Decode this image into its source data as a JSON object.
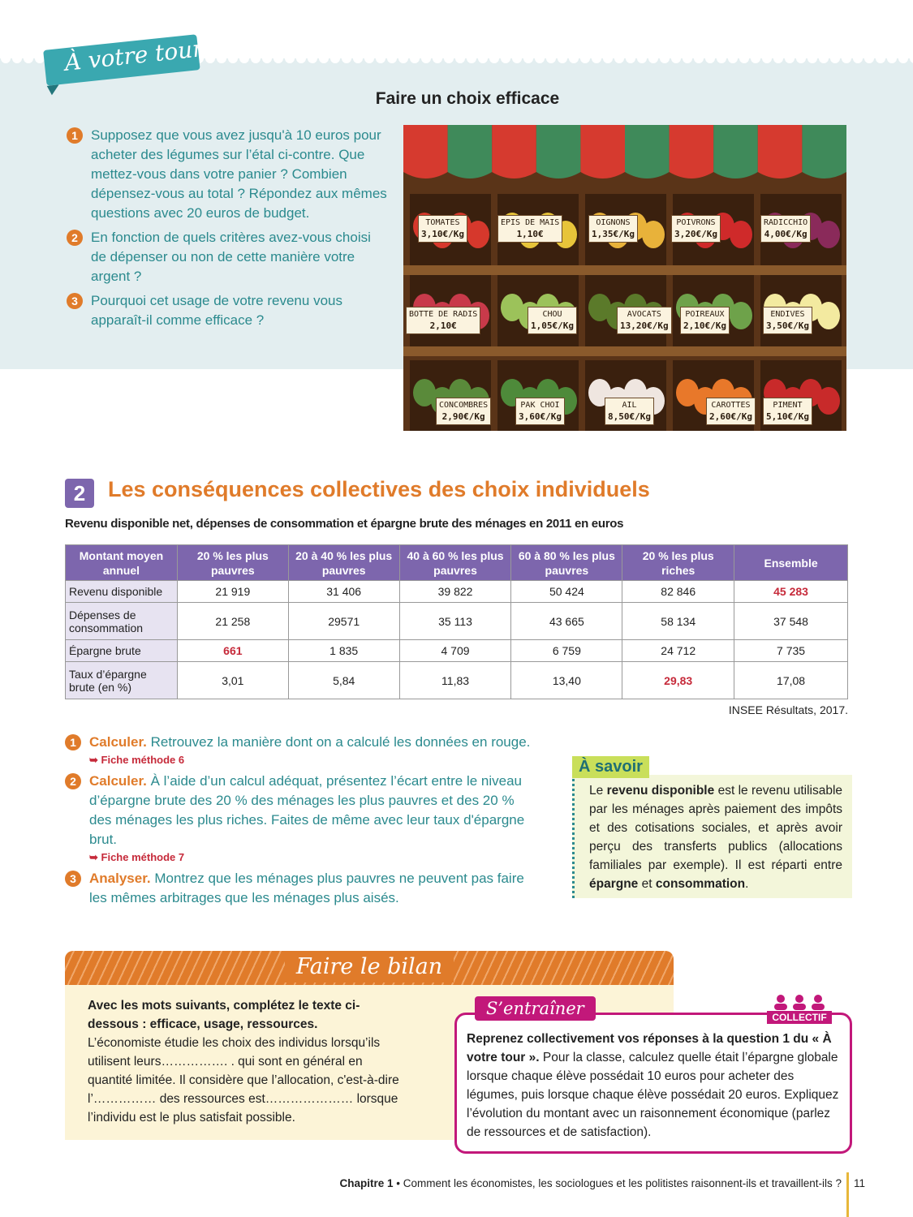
{
  "banner": "À votre tour",
  "activity": {
    "title": "Faire un choix efficace",
    "questions": [
      {
        "number": "1",
        "text": "Supposez que vous avez jusqu'à 10 euros pour acheter des légumes sur l’étal ci-contre. Que mettez-vous dans votre panier ? Combien dépensez-vous au total ? Répondez aux mêmes questions avec 20 euros de budget."
      },
      {
        "number": "2",
        "text": "En fonction de quels critères avez-vous choisi de dépenser ou non de cette manière votre argent ?"
      },
      {
        "number": "3",
        "text": "Pourquoi cet usage de votre revenu vous apparaît-il comme efficace ?"
      }
    ]
  },
  "stall": {
    "items": [
      {
        "name": "TOMATES",
        "price": "3,10€/Kg"
      },
      {
        "name": "EPIS DE MAIS",
        "price": "1,10€"
      },
      {
        "name": "OIGNONS",
        "price": "1,35€/Kg"
      },
      {
        "name": "POIVRONS",
        "price": "3,20€/Kg"
      },
      {
        "name": "RADICCHIO",
        "price": "4,00€/Kg"
      },
      {
        "name": "BOTTE DE RADIS",
        "price": "2,10€"
      },
      {
        "name": "CHOU",
        "price": "1,05€/Kg"
      },
      {
        "name": "AVOCATS",
        "price": "13,20€/Kg"
      },
      {
        "name": "POIREAUX",
        "price": "2,10€/Kg"
      },
      {
        "name": "ENDIVES",
        "price": "3,50€/Kg"
      },
      {
        "name": "CONCOMBRES",
        "price": "2,90€/Kg"
      },
      {
        "name": "PAK CHOI",
        "price": "3,60€/Kg"
      },
      {
        "name": "AIL",
        "price": "8,50€/Kg"
      },
      {
        "name": "CAROTTES",
        "price": "2,60€/Kg"
      },
      {
        "name": "PIMENT",
        "price": "5,10€/Kg"
      }
    ]
  },
  "section": {
    "number": "2",
    "title": "Les conséquences collectives des choix individuels",
    "subtitle": "Revenu disponible net, dépenses de consommation et épargne brute des ménages en 2011 en euros",
    "table": {
      "columns": [
        "Montant moyen annuel",
        "20 % les plus pauvres",
        "20 à 40 % les plus pauvres",
        "40 à 60 % les plus pauvres",
        "60 à 80 % les plus pauvres",
        "20 % les plus riches",
        "Ensemble"
      ],
      "rows": [
        [
          "Revenu disponible",
          "21 919",
          "31 406",
          "39 822",
          "50 424",
          "82 846",
          {
            "text": "45 283",
            "color": "#c62a3a"
          }
        ],
        [
          "Dépenses de consommation",
          "21 258",
          "29571",
          "35 113",
          "43 665",
          "58 134",
          "37 548"
        ],
        [
          "Épargne brute",
          {
            "text": "661",
            "color": "#c62a3a"
          },
          "1 835",
          "4 709",
          "6 759",
          "24 712",
          "7 735"
        ],
        [
          "Taux d’épargne brute (en %)",
          "3,01",
          "5,84",
          "11,83",
          "13,40",
          {
            "text": "29,83",
            "color": "#c62a3a"
          },
          "17,08"
        ]
      ]
    },
    "source": "INSEE Résultats, 2017.",
    "questions": [
      {
        "number": "1",
        "verb": "Calculer.",
        "text": " Retrouvez la manière dont on a calculé les données en rouge.",
        "method": "Fiche méthode 6"
      },
      {
        "number": "2",
        "verb": "Calculer.",
        "text": " À l’aide d’un calcul adéquat, présentez l’écart entre le niveau d’épargne brute des 20 % des ménages les plus pauvres et des 20 % des ménages les plus riches. Faites de même avec leur taux d'épargne brut.",
        "method": "Fiche méthode 7"
      },
      {
        "number": "3",
        "verb": "Analyser.",
        "text": " Montrez que les ménages plus pauvres ne peuvent pas faire les mêmes arbitrages que les ménages plus aisés."
      }
    ]
  },
  "a_savoir": {
    "title": "À savoir",
    "text": [
      {
        "text": "Le "
      },
      {
        "text": "revenu disponible",
        "bold": true
      },
      {
        "text": " est le revenu utilisable par les ménages après paiement des impôts et des cotisations sociales, et après avoir perçu des transferts publics (allocations familiales par exemple). Il est réparti entre "
      },
      {
        "text": "épargne",
        "bold": true
      },
      {
        "text": " et "
      },
      {
        "text": "consommation",
        "bold": true
      },
      {
        "text": "."
      }
    ]
  },
  "bilan": {
    "title": "Faire le bilan",
    "instruction": "Avec les mots suivants, complétez le texte ci-dessous : efficace, usage, ressources.",
    "text": "L’économiste étudie les choix des individus lorsqu’ils utilisent leurs……………. . qui sont en général en quantité limitée. Il considère que l’allocation, c'est-à-dire l’…………… des ressources est………………… lorsque l’individu est le plus satisfait possible."
  },
  "entrainer": {
    "title": "S’entraîner",
    "tag": "COLLECTIF",
    "text": [
      {
        "text": "Reprenez collectivement vos réponses à la question 1 du « À votre tour ».",
        "bold": true
      },
      {
        "text": " Pour la classe, calculez quelle était l’épargne globale lorsque chaque élève possédait 10 euros pour acheter des légumes, puis lorsque chaque élève possédait 20 euros. Expliquez l’évolution du montant avec un raisonnement économique (parlez de ressources et de satisfaction)."
      }
    ]
  },
  "footer": {
    "chapter": "Chapitre 1",
    "text": " • Comment les économistes, les sociologues et les politistes raisonnent-ils et travaillent-ils ?",
    "page": "11"
  }
}
